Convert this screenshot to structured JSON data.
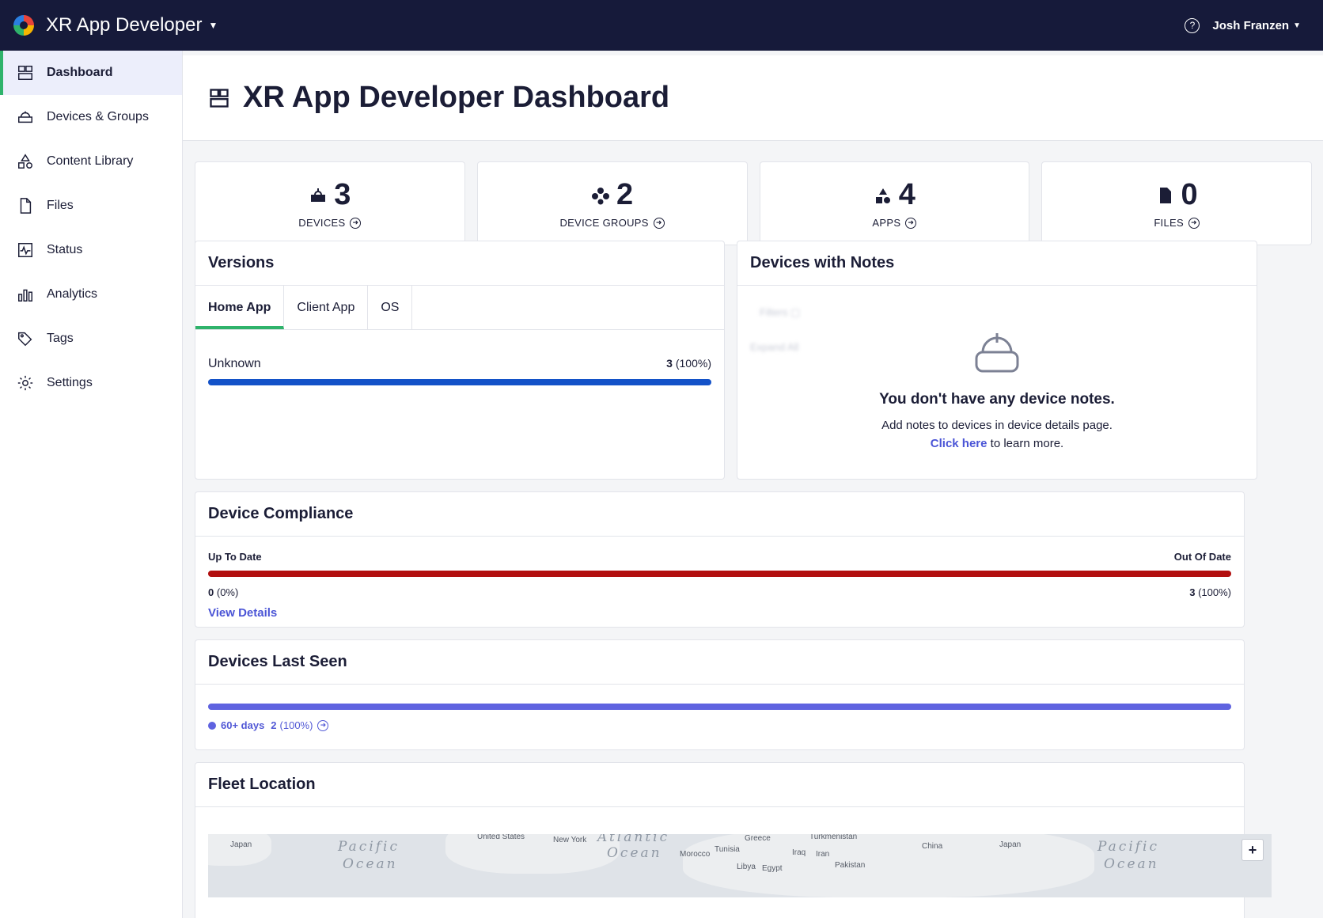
{
  "topbar": {
    "app_name": "XR App Developer",
    "user_name": "Josh Franzen"
  },
  "sidebar": {
    "items": [
      {
        "label": "Dashboard",
        "icon": "dashboard-icon"
      },
      {
        "label": "Devices & Groups",
        "icon": "headset-icon"
      },
      {
        "label": "Content Library",
        "icon": "shapes-icon"
      },
      {
        "label": "Files",
        "icon": "file-icon"
      },
      {
        "label": "Status",
        "icon": "pulse-icon"
      },
      {
        "label": "Analytics",
        "icon": "bar-chart-icon"
      },
      {
        "label": "Tags",
        "icon": "tag-icon"
      },
      {
        "label": "Settings",
        "icon": "gear-icon"
      }
    ]
  },
  "page": {
    "title": "XR App Developer Dashboard"
  },
  "stats": [
    {
      "value": "3",
      "label": "DEVICES"
    },
    {
      "value": "2",
      "label": "DEVICE GROUPS"
    },
    {
      "value": "4",
      "label": "APPS"
    },
    {
      "value": "0",
      "label": "FILES"
    }
  ],
  "versions": {
    "title": "Versions",
    "tabs": [
      "Home App",
      "Client App",
      "OS"
    ],
    "row_label": "Unknown",
    "row_count": "3",
    "row_pct": "(100%)",
    "bar_fraction": 1.0
  },
  "notes": {
    "title": "Devices with Notes",
    "heading": "You don't have any device notes.",
    "sub": "Add notes to devices in device details page.",
    "link": "Click here",
    "link_suffix": "to learn more."
  },
  "compliance": {
    "title": "Device Compliance",
    "left_label": "Up To Date",
    "right_label": "Out Of Date",
    "left_count": "0",
    "left_pct": "(0%)",
    "right_count": "3",
    "right_pct": "(100%)",
    "link": "View Details",
    "out_of_date_fraction": 1.0
  },
  "last_seen": {
    "title": "Devices Last Seen",
    "bucket": "60+ days",
    "count": "2",
    "pct": "(100%)",
    "fraction": 1.0
  },
  "fleet": {
    "title": "Fleet Location",
    "places": [
      "Japan",
      "United States",
      "New York",
      "Morocco",
      "Tunisia",
      "Greece",
      "Turkmenistan",
      "Iraq",
      "Iran",
      "China",
      "Japan",
      "Libya",
      "Egypt",
      "Pakistan"
    ],
    "oceans": [
      "Pacific",
      "Ocean",
      "Atlantic",
      "Ocean",
      "Pacific",
      "Ocean"
    ],
    "zoom_in": "+"
  },
  "colors": {
    "accent_green": "#2fb36b",
    "bar_blue": "#1352c8",
    "bar_red": "#b20f0f",
    "bar_purple": "#5f63e0",
    "link": "#4a54d6"
  }
}
